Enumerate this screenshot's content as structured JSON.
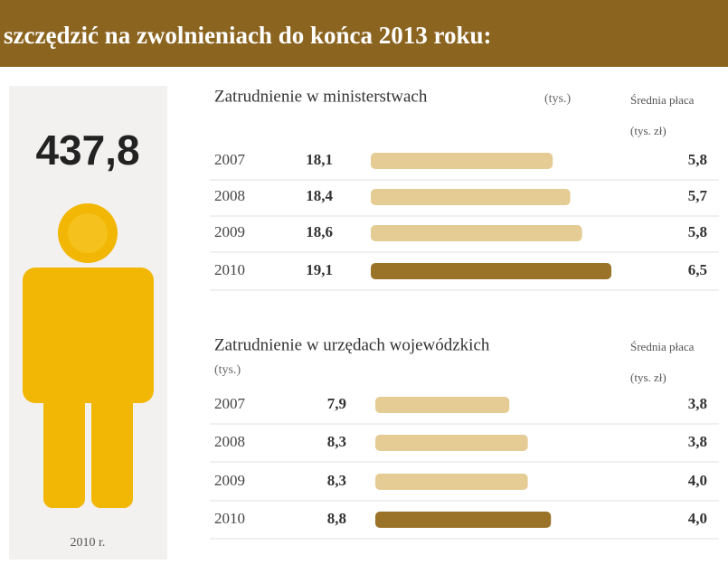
{
  "header": {
    "title": "szczędzić na zwolnieniach do końca 2013 roku:"
  },
  "total": {
    "value": "437,8",
    "label": "2010 r."
  },
  "chart_data": [
    {
      "type": "bar",
      "orientation": "horizontal",
      "title": "Zatrudnienie w ministerstwach",
      "unit": "(tys.)",
      "categories": [
        "2007",
        "2008",
        "2009",
        "2010"
      ],
      "values": [
        18.1,
        18.4,
        18.6,
        19.1
      ],
      "value_labels": [
        "18,1",
        "18,4",
        "18,6",
        "19,1"
      ],
      "colors": [
        "#e4cc94",
        "#e4cc94",
        "#e4cc94",
        "#9a7228"
      ],
      "xlim": [
        15,
        19.5
      ],
      "side_title": "Średnia płaca",
      "side_unit": "(tys. zł)",
      "side_values": [
        5.8,
        5.7,
        5.8,
        6.5
      ],
      "side_value_labels": [
        "5,8",
        "5,7",
        "5,8",
        "6,5"
      ]
    },
    {
      "type": "bar",
      "orientation": "horizontal",
      "title": "Zatrudnienie w urzędach wojewódzkich",
      "unit": "(tys.)",
      "categories": [
        "2007",
        "2008",
        "2009",
        "2010"
      ],
      "values": [
        7.9,
        8.3,
        8.3,
        8.8
      ],
      "value_labels": [
        "7,9",
        "8,3",
        "8,3",
        "8,8"
      ],
      "colors": [
        "#e4cc94",
        "#e4cc94",
        "#e4cc94",
        "#9a7228"
      ],
      "xlim": [
        5,
        9.5
      ],
      "side_title": "Średnia płaca",
      "side_unit": "(tys. zł)",
      "side_values": [
        3.8,
        3.8,
        4.0,
        4.0
      ],
      "side_value_labels": [
        "3,8",
        "3,8",
        "4,0",
        "4,0"
      ]
    }
  ]
}
